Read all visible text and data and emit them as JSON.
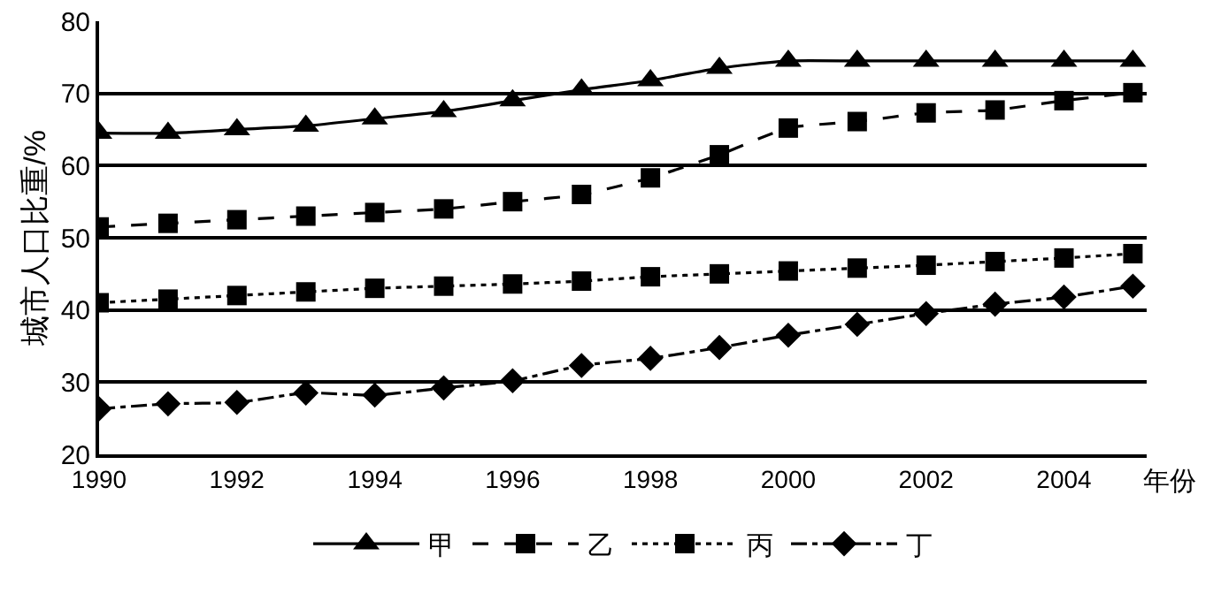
{
  "chart_data": {
    "type": "line",
    "ylabel": "城市人口比重/%",
    "xlabel": "年份",
    "x": [
      1990,
      1991,
      1992,
      1993,
      1994,
      1995,
      1996,
      1997,
      1998,
      1999,
      2000,
      2001,
      2002,
      2003,
      2004,
      2005
    ],
    "xlim": [
      1990,
      2005.2
    ],
    "xticks": [
      1990,
      1992,
      1994,
      1996,
      1998,
      2000,
      2002,
      2004
    ],
    "ylim": [
      20,
      80
    ],
    "yticks": [
      20,
      30,
      40,
      50,
      60,
      70,
      80
    ],
    "grid": "y",
    "legend": "bottom",
    "series": [
      {
        "name": "甲",
        "color": "#000000",
        "marker": "triangle",
        "line_style": "solid",
        "values": [
          64.5,
          64.5,
          65,
          65.5,
          66.5,
          67.5,
          69,
          70.5,
          71.8,
          73.5,
          74.5,
          74.5,
          74.5,
          74.5,
          74.5,
          74.5
        ]
      },
      {
        "name": "乙",
        "color": "#000000",
        "marker": "square",
        "line_style": "dashed",
        "values": [
          51.5,
          52,
          52.5,
          53,
          53.5,
          54,
          55,
          56,
          58.3,
          61.5,
          65.2,
          66.1,
          67.3,
          67.7,
          69,
          70.1
        ]
      },
      {
        "name": "丙",
        "color": "#000000",
        "marker": "square",
        "line_style": "dotted",
        "values": [
          41,
          41.5,
          42,
          42.5,
          43,
          43.3,
          43.6,
          44,
          44.6,
          45,
          45.4,
          45.8,
          46.2,
          46.7,
          47.2,
          47.8
        ]
      },
      {
        "name": "丁",
        "color": "#000000",
        "marker": "diamond",
        "line_style": "dashdot",
        "values": [
          26.3,
          27,
          27.2,
          28.5,
          28.2,
          29.2,
          30.2,
          32.3,
          33.3,
          34.8,
          36.5,
          38,
          39.5,
          40.8,
          41.8,
          43.3
        ]
      }
    ]
  }
}
